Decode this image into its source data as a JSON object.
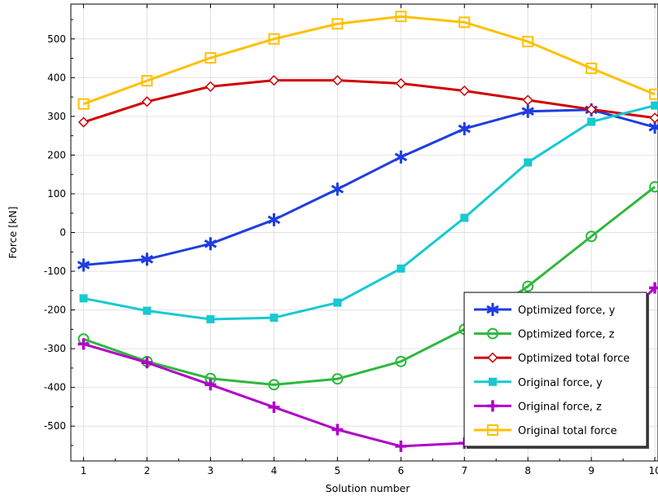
{
  "chart_data": {
    "type": "line",
    "xlabel": "Solution number",
    "ylabel": "Force [kN]",
    "xlim": [
      0.8,
      10.05
    ],
    "ylim": [
      -590,
      590
    ],
    "x": [
      1,
      2,
      3,
      4,
      5,
      6,
      7,
      8,
      9,
      10
    ],
    "x_ticks": [
      1,
      2,
      3,
      4,
      5,
      6,
      7,
      8,
      9,
      10
    ],
    "y_ticks": [
      -500,
      -400,
      -300,
      -200,
      -100,
      0,
      100,
      200,
      300,
      400,
      500
    ],
    "grid": true,
    "legend_position": "bottom-right",
    "series": [
      {
        "name": "Optimized force, y",
        "color": "#1f3de0",
        "marker": "asterisk",
        "values": [
          -84,
          -69,
          -29,
          33,
          112,
          195,
          268,
          313,
          317,
          272
        ]
      },
      {
        "name": "Optimized force, z",
        "color": "#2db83d",
        "marker": "circle",
        "values": [
          -275,
          -333,
          -377,
          -393,
          -378,
          -333,
          -250,
          -139,
          -10,
          118
        ]
      },
      {
        "name": "Optimized total force",
        "color": "#d00000",
        "marker": "diamond",
        "values": [
          285,
          338,
          377,
          393,
          393,
          385,
          366,
          342,
          318,
          296
        ]
      },
      {
        "name": "Original force, y",
        "color": "#17c9d2",
        "marker": "square-filled",
        "values": [
          -170,
          -202,
          -224,
          -220,
          -181,
          -93,
          38,
          181,
          286,
          328
        ]
      },
      {
        "name": "Original force, z",
        "color": "#b000c8",
        "marker": "plus",
        "values": [
          -288,
          -336,
          -393,
          -451,
          -509,
          -552,
          -544,
          -440,
          -300,
          -143
        ]
      },
      {
        "name": "Original total force",
        "color": "#ffc000",
        "marker": "square-open",
        "values": [
          332,
          392,
          451,
          500,
          539,
          558,
          543,
          493,
          424,
          357
        ]
      }
    ]
  }
}
